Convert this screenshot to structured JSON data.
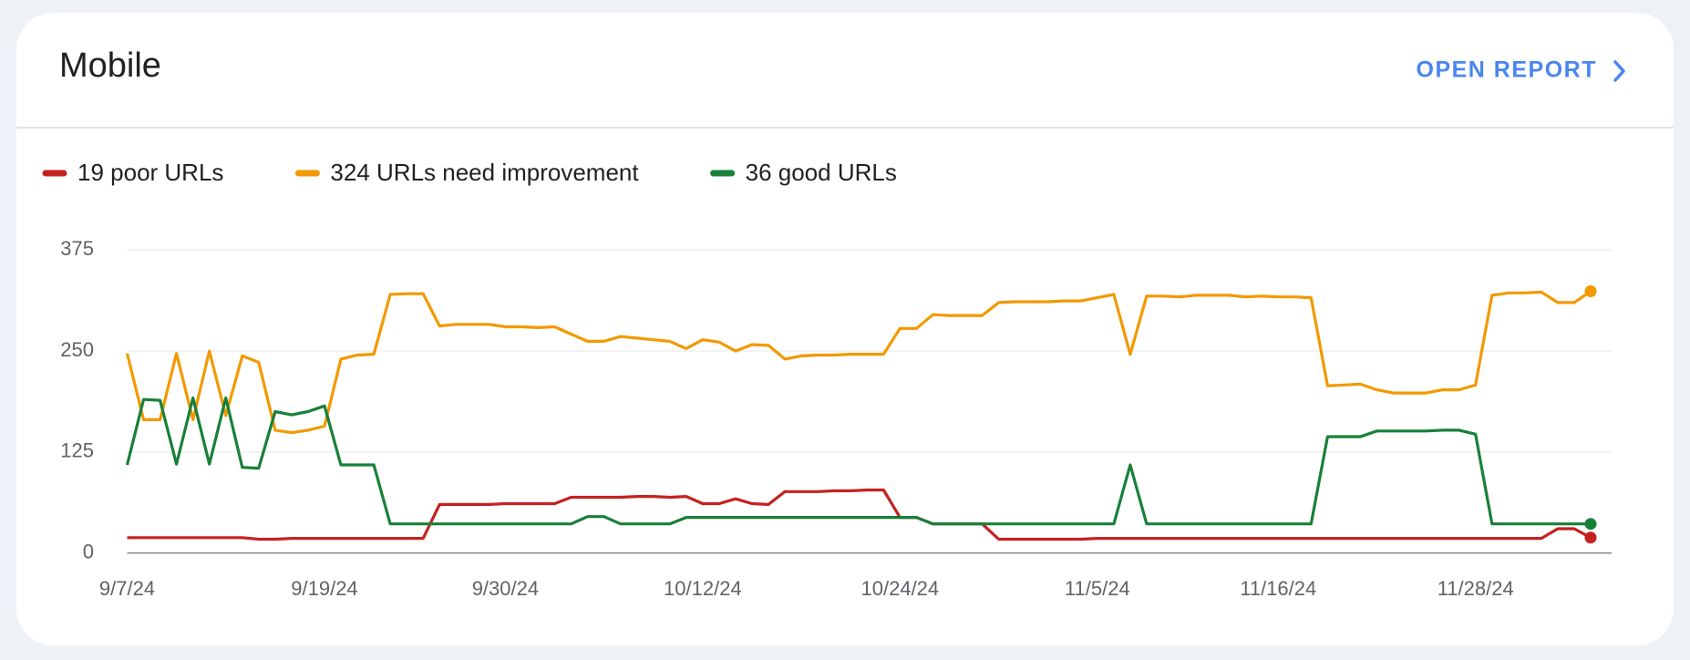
{
  "header": {
    "title": "Mobile",
    "link": "OPEN REPORT"
  },
  "chart_data": {
    "type": "line",
    "categories": [
      "9/7/24",
      null,
      null,
      null,
      null,
      null,
      null,
      null,
      null,
      null,
      null,
      null,
      "9/19/24",
      null,
      null,
      null,
      null,
      null,
      null,
      null,
      null,
      null,
      null,
      "9/30/24",
      null,
      null,
      null,
      null,
      null,
      null,
      null,
      null,
      null,
      null,
      null,
      "10/12/24",
      null,
      null,
      null,
      null,
      null,
      null,
      null,
      null,
      null,
      null,
      null,
      "10/24/24",
      null,
      null,
      null,
      null,
      null,
      null,
      null,
      null,
      null,
      null,
      null,
      "11/5/24",
      null,
      null,
      null,
      null,
      null,
      null,
      null,
      null,
      null,
      null,
      "11/16/24",
      null,
      null,
      null,
      null,
      null,
      null,
      null,
      null,
      null,
      null,
      null,
      "11/28/24",
      null,
      null,
      null,
      null,
      null,
      null,
      null
    ],
    "series": [
      {
        "name": "19 poor URLs",
        "color": "#c5221f",
        "values": [
          19,
          19,
          19,
          19,
          19,
          19,
          19,
          19,
          17,
          17,
          18,
          18,
          18,
          18,
          18,
          18,
          18,
          18,
          18,
          60,
          60,
          60,
          60,
          61,
          61,
          61,
          61,
          69,
          69,
          69,
          69,
          70,
          70,
          69,
          70,
          61,
          61,
          67,
          61,
          60,
          76,
          76,
          76,
          77,
          77,
          78,
          78,
          44,
          44,
          36,
          36,
          36,
          36,
          17,
          17,
          17,
          17,
          17,
          17,
          18,
          18,
          18,
          18,
          18,
          18,
          18,
          18,
          18,
          18,
          18,
          18,
          18,
          18,
          18,
          18,
          18,
          18,
          18,
          18,
          18,
          18,
          18,
          18,
          18,
          18,
          18,
          18,
          30,
          30,
          19
        ]
      },
      {
        "name": "324 URLs need improvement",
        "color": "#f29900",
        "values": [
          247,
          165,
          165,
          247,
          165,
          250,
          170,
          244,
          236,
          152,
          149,
          152,
          157,
          240,
          245,
          246,
          320,
          321,
          321,
          281,
          283,
          283,
          283,
          280,
          280,
          279,
          280,
          271,
          262,
          262,
          268,
          266,
          264,
          262,
          253,
          264,
          261,
          250,
          258,
          257,
          240,
          244,
          245,
          245,
          246,
          246,
          246,
          278,
          278,
          295,
          294,
          294,
          294,
          310,
          311,
          311,
          311,
          312,
          312,
          316,
          320,
          246,
          318,
          318,
          317,
          319,
          319,
          319,
          317,
          318,
          317,
          317,
          316,
          207,
          208,
          209,
          202,
          198,
          198,
          198,
          202,
          202,
          208,
          319,
          322,
          322,
          323,
          310,
          310,
          324
        ]
      },
      {
        "name": "36 good URLs",
        "color": "#188038",
        "values": [
          109,
          190,
          189,
          110,
          192,
          110,
          192,
          106,
          105,
          175,
          171,
          175,
          182,
          109,
          109,
          109,
          36,
          36,
          36,
          36,
          36,
          36,
          36,
          36,
          36,
          36,
          36,
          36,
          45,
          45,
          36,
          36,
          36,
          36,
          44,
          44,
          44,
          44,
          44,
          44,
          44,
          44,
          44,
          44,
          44,
          44,
          44,
          44,
          44,
          36,
          36,
          36,
          36,
          36,
          36,
          36,
          36,
          36,
          36,
          36,
          36,
          109,
          36,
          36,
          36,
          36,
          36,
          36,
          36,
          36,
          36,
          36,
          36,
          144,
          144,
          144,
          151,
          151,
          151,
          151,
          152,
          152,
          147,
          36,
          36,
          36,
          36,
          36,
          36,
          36
        ]
      }
    ],
    "ylim": [
      0,
      375
    ],
    "yticks": [
      0,
      125,
      250,
      375
    ],
    "grid": true
  }
}
